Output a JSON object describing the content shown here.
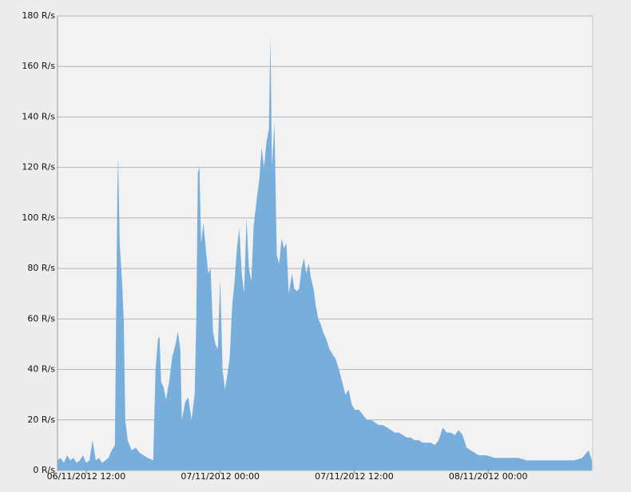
{
  "chart_data": {
    "type": "area",
    "color": "#78aedc",
    "grid": true,
    "xlim": [
      9.43,
      57.36
    ],
    "ylim": [
      0,
      180
    ],
    "xticks": [
      {
        "value": 12,
        "label": "06/11/2012 12:00"
      },
      {
        "value": 24,
        "label": "07/11/2012 00:00"
      },
      {
        "value": 36,
        "label": "07/11/2012 12:00"
      },
      {
        "value": 48,
        "label": "08/11/2012 00:00"
      }
    ],
    "yticks": [
      {
        "value": 0,
        "label": "0 R/s"
      },
      {
        "value": 20,
        "label": "20 R/s"
      },
      {
        "value": 40,
        "label": "40 R/s"
      },
      {
        "value": 60,
        "label": "60 R/s"
      },
      {
        "value": 80,
        "label": "80 R/s"
      },
      {
        "value": 100,
        "label": "100 R/s"
      },
      {
        "value": 120,
        "label": "120 R/s"
      },
      {
        "value": 140,
        "label": "140 R/s"
      },
      {
        "value": 160,
        "label": "160 R/s"
      },
      {
        "value": 180,
        "label": "180 R/s"
      }
    ],
    "x": [
      9.43,
      9.71,
      10.0,
      10.29,
      10.57,
      10.86,
      11.14,
      11.43,
      11.71,
      12.0,
      12.29,
      12.57,
      12.86,
      13.14,
      13.43,
      13.71,
      14.0,
      14.29,
      14.57,
      14.79,
      14.86,
      15.0,
      15.21,
      15.36,
      15.5,
      15.71,
      16.07,
      16.43,
      16.79,
      17.14,
      17.5,
      18.0,
      18.21,
      18.43,
      18.57,
      18.71,
      18.93,
      19.14,
      19.43,
      19.71,
      20.0,
      20.21,
      20.43,
      20.57,
      20.86,
      21.14,
      21.43,
      21.71,
      21.86,
      22.0,
      22.14,
      22.29,
      22.5,
      22.71,
      22.93,
      23.14,
      23.36,
      23.57,
      23.79,
      24.0,
      24.21,
      24.43,
      24.64,
      24.86,
      25.07,
      25.29,
      25.5,
      25.71,
      25.93,
      26.14,
      26.36,
      26.57,
      26.79,
      27.0,
      27.29,
      27.5,
      27.71,
      27.93,
      28.14,
      28.36,
      28.5,
      28.64,
      28.86,
      29.07,
      29.29,
      29.5,
      29.71,
      29.93,
      30.14,
      30.43,
      30.64,
      30.86,
      31.07,
      31.29,
      31.5,
      31.71,
      31.93,
      32.14,
      32.36,
      32.57,
      32.79,
      33.0,
      33.21,
      33.5,
      33.79,
      34.07,
      34.36,
      34.64,
      34.93,
      35.21,
      35.5,
      35.79,
      36.07,
      36.43,
      36.79,
      37.14,
      37.5,
      37.86,
      38.21,
      38.57,
      38.93,
      39.29,
      39.64,
      40.0,
      40.36,
      40.71,
      41.07,
      41.43,
      41.79,
      42.14,
      42.5,
      42.86,
      43.21,
      43.57,
      43.93,
      44.29,
      44.64,
      45.0,
      45.36,
      45.71,
      46.07,
      46.43,
      46.79,
      47.14,
      47.86,
      48.57,
      49.29,
      50.0,
      50.71,
      51.43,
      52.14,
      52.86,
      53.57,
      54.29,
      55.0,
      55.71,
      56.43,
      57.0,
      57.29
    ],
    "values": [
      4,
      5,
      3,
      6,
      4,
      5,
      3,
      4,
      6,
      3,
      4,
      12,
      4,
      5,
      3,
      4,
      5,
      8,
      10,
      110,
      124,
      90,
      75,
      60,
      20,
      12,
      8,
      9,
      7,
      6,
      5,
      4,
      40,
      52,
      53,
      35,
      33,
      28,
      35,
      45,
      50,
      55,
      48,
      20,
      27,
      29,
      20,
      30,
      60,
      118,
      120,
      90,
      98,
      88,
      78,
      80,
      55,
      50,
      48,
      76,
      40,
      32,
      38,
      45,
      65,
      75,
      88,
      96,
      78,
      70,
      100,
      80,
      75,
      97,
      108,
      115,
      128,
      120,
      130,
      135,
      172,
      120,
      138,
      85,
      82,
      92,
      88,
      90,
      70,
      78,
      72,
      71,
      72,
      80,
      84,
      78,
      82,
      76,
      72,
      65,
      60,
      58,
      55,
      52,
      48,
      46,
      44,
      40,
      35,
      30,
      32,
      26,
      24,
      24,
      22,
      20,
      20,
      19,
      18,
      18,
      17,
      16,
      15,
      15,
      14,
      13,
      13,
      12,
      12,
      11,
      11,
      11,
      10,
      12,
      17,
      15,
      15,
      14,
      16,
      14,
      9,
      8,
      7,
      6,
      6,
      5,
      5,
      5,
      5,
      4,
      4,
      4,
      4,
      4,
      4,
      4,
      5,
      8,
      4
    ]
  }
}
